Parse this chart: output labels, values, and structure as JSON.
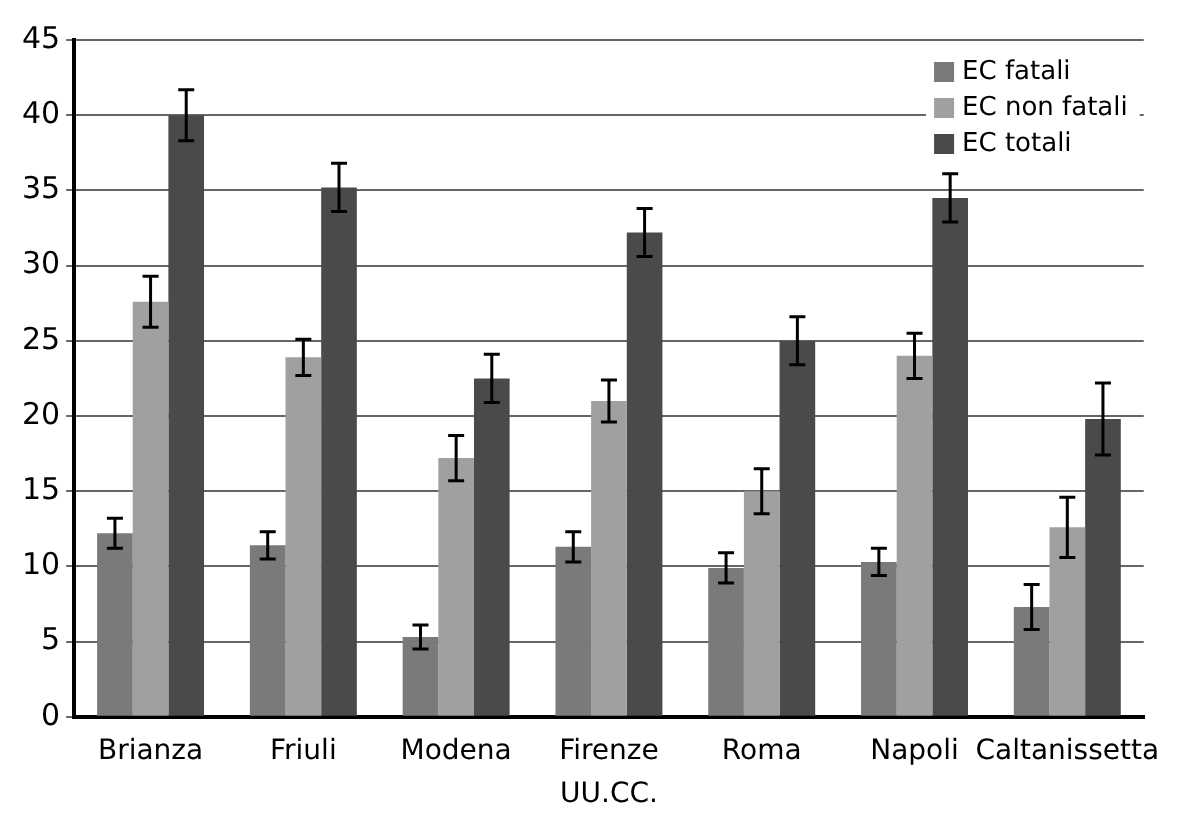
{
  "chart_data": {
    "type": "bar",
    "xlabel": "UU.CC.",
    "categories": [
      "Brianza",
      "Friuli",
      "Modena",
      "Firenze",
      "Roma",
      "Napoli",
      "Caltanissetta"
    ],
    "series": [
      {
        "name": "EC fatali",
        "color": "#7a7a7a",
        "values": [
          12.2,
          11.4,
          5.3,
          11.3,
          9.9,
          10.3,
          7.3
        ],
        "errors": [
          1,
          0.9,
          0.8,
          1,
          1,
          0.9,
          1.5
        ]
      },
      {
        "name": "EC non fatali",
        "color": "#a0a0a0",
        "values": [
          27.6,
          23.9,
          17.2,
          21,
          15,
          24,
          12.6
        ],
        "errors": [
          1.7,
          1.2,
          1.5,
          1.4,
          1.5,
          1.5,
          2
        ]
      },
      {
        "name": "EC totali",
        "color": "#4a4a4a",
        "values": [
          40,
          35.2,
          22.5,
          32.2,
          25,
          34.5,
          19.8
        ],
        "errors": [
          1.7,
          1.6,
          1.6,
          1.6,
          1.6,
          1.6,
          2.4
        ]
      }
    ],
    "ylim": [
      0,
      45
    ],
    "yticks": [
      0,
      5,
      10,
      15,
      20,
      25,
      30,
      35,
      40,
      45
    ],
    "grid": "y",
    "legend": "top right"
  }
}
